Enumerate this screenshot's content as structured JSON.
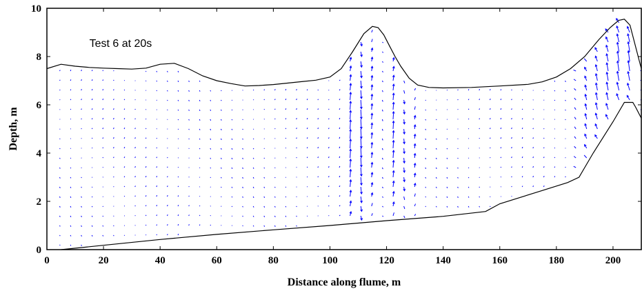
{
  "chart_data": {
    "type": "scatter",
    "title": "",
    "xlabel": "Distance along flume, m",
    "ylabel": "Depth, m",
    "xlim": [
      0,
      210
    ],
    "ylim": [
      0,
      10
    ],
    "xticks": [
      0,
      20,
      40,
      60,
      80,
      100,
      120,
      140,
      160,
      180,
      200
    ],
    "yticks": [
      0,
      2,
      4,
      6,
      8,
      10
    ],
    "annotation": "Test 6 at 20s",
    "grid": false,
    "colors": {
      "vectors": "#0000ff",
      "lines": "#000000"
    },
    "free_surface": {
      "x": [
        0,
        5,
        10,
        15,
        20,
        25,
        30,
        35,
        40,
        45,
        50,
        55,
        60,
        65,
        70,
        75,
        80,
        85,
        90,
        95,
        100,
        104,
        108,
        112,
        115,
        117,
        119,
        121,
        123,
        125,
        128,
        131,
        135,
        140,
        150,
        160,
        170,
        175,
        180,
        185,
        190,
        195,
        199,
        202,
        204,
        206,
        208,
        210
      ],
      "y": [
        7.5,
        7.68,
        7.6,
        7.55,
        7.52,
        7.5,
        7.48,
        7.52,
        7.68,
        7.72,
        7.5,
        7.2,
        7.0,
        6.88,
        6.78,
        6.8,
        6.84,
        6.9,
        6.96,
        7.02,
        7.15,
        7.5,
        8.2,
        8.95,
        9.25,
        9.2,
        8.9,
        8.45,
        8.0,
        7.6,
        7.1,
        6.82,
        6.72,
        6.7,
        6.72,
        6.78,
        6.85,
        6.95,
        7.15,
        7.5,
        8.0,
        8.7,
        9.2,
        9.5,
        9.55,
        9.3,
        8.4,
        7.5
      ]
    },
    "bed": {
      "x": [
        5,
        20,
        40,
        60,
        80,
        100,
        120,
        140,
        155,
        160,
        175,
        184,
        188,
        190,
        193,
        200,
        204,
        207,
        208,
        210
      ],
      "y": [
        0.0,
        0.18,
        0.42,
        0.63,
        0.82,
        1.0,
        1.2,
        1.38,
        1.58,
        1.9,
        2.45,
        2.78,
        3.0,
        3.4,
        4.0,
        5.3,
        6.1,
        6.1,
        5.9,
        5.45
      ]
    },
    "velocity_field": {
      "x_spacing_m": 3.8,
      "y_spacing_m": 0.4,
      "description_visible": "blue arrows showing velocity vectors below the free surface"
    }
  }
}
